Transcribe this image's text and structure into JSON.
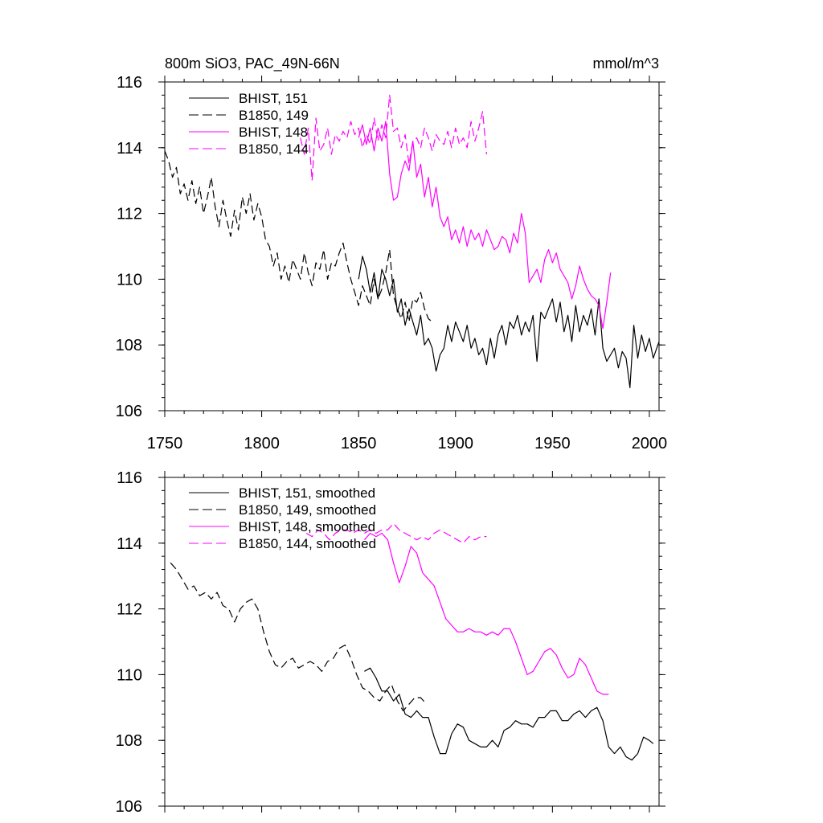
{
  "title_left": "800m SiO3, PAC_49N-66N",
  "title_right": "mmol/m^3",
  "colors": {
    "black": "#000000",
    "magenta": "#ff00ff"
  },
  "chart_data": [
    {
      "type": "line",
      "xlim": [
        1750,
        2005
      ],
      "ylim": [
        106,
        116
      ],
      "x_ticks": [
        1750,
        1800,
        1850,
        1900,
        1950,
        2000
      ],
      "y_ticks": [
        106,
        108,
        110,
        112,
        114,
        116
      ],
      "show_x_labels": true,
      "grid": false,
      "legend_position": "top-left",
      "series": [
        {
          "name": "BHIST, 151",
          "color": "#000000",
          "dash": "solid",
          "x": [
            1850,
            1852,
            1854,
            1856,
            1858,
            1860,
            1862,
            1864,
            1866,
            1868,
            1870,
            1872,
            1874,
            1876,
            1878,
            1880,
            1882,
            1884,
            1886,
            1888,
            1890,
            1892,
            1894,
            1896,
            1898,
            1900,
            1902,
            1904,
            1906,
            1908,
            1910,
            1912,
            1914,
            1916,
            1918,
            1920,
            1922,
            1924,
            1926,
            1928,
            1930,
            1932,
            1934,
            1936,
            1938,
            1940,
            1942,
            1944,
            1946,
            1948,
            1950,
            1952,
            1954,
            1956,
            1958,
            1960,
            1962,
            1964,
            1966,
            1968,
            1970,
            1972,
            1974,
            1976,
            1978,
            1980,
            1982,
            1984,
            1986,
            1988,
            1990,
            1992,
            1994,
            1996,
            1998,
            2000,
            2002,
            2005
          ],
          "y": [
            110.0,
            110.7,
            110.3,
            109.6,
            110.2,
            109.4,
            110.3,
            110.0,
            109.5,
            110.0,
            109.0,
            109.4,
            108.6,
            109.1,
            108.7,
            108.3,
            108.9,
            108.0,
            108.2,
            107.9,
            107.2,
            107.7,
            107.9,
            108.6,
            108.1,
            108.7,
            108.4,
            108.1,
            108.6,
            107.9,
            108.2,
            107.7,
            107.9,
            107.4,
            108.2,
            107.6,
            108.3,
            108.6,
            108.0,
            108.7,
            108.5,
            108.9,
            108.3,
            108.7,
            108.4,
            108.9,
            107.5,
            109.0,
            108.8,
            109.1,
            109.4,
            108.7,
            109.3,
            108.4,
            108.9,
            108.1,
            109.2,
            108.4,
            108.9,
            108.6,
            109.1,
            108.3,
            109.4,
            107.9,
            107.5,
            107.7,
            107.9,
            107.3,
            107.8,
            107.6,
            106.7,
            108.6,
            107.6,
            108.3,
            107.8,
            108.2,
            107.6,
            108.1
          ]
        },
        {
          "name": "B1850, 149",
          "color": "#000000",
          "dash": "dash",
          "x": [
            1750,
            1752,
            1754,
            1756,
            1758,
            1760,
            1762,
            1764,
            1766,
            1768,
            1770,
            1772,
            1774,
            1776,
            1778,
            1780,
            1782,
            1784,
            1786,
            1788,
            1790,
            1792,
            1794,
            1796,
            1798,
            1800,
            1802,
            1804,
            1806,
            1808,
            1810,
            1812,
            1814,
            1816,
            1818,
            1820,
            1822,
            1824,
            1826,
            1828,
            1830,
            1832,
            1834,
            1836,
            1838,
            1840,
            1842,
            1844,
            1846,
            1848,
            1850,
            1852,
            1854,
            1856,
            1858,
            1860,
            1862,
            1864,
            1866,
            1868,
            1870,
            1872,
            1874,
            1876,
            1878,
            1880,
            1882,
            1884,
            1886,
            1888
          ],
          "y": [
            113.9,
            113.6,
            113.1,
            113.4,
            112.6,
            112.9,
            112.4,
            113.0,
            112.3,
            112.8,
            112.0,
            112.5,
            113.1,
            112.2,
            111.6,
            112.4,
            111.8,
            111.3,
            112.1,
            111.5,
            112.5,
            112.0,
            112.6,
            111.8,
            112.3,
            111.9,
            111.2,
            111.0,
            110.4,
            110.8,
            110.0,
            110.4,
            109.9,
            110.6,
            110.3,
            110.0,
            110.8,
            110.2,
            109.8,
            110.5,
            110.3,
            110.9,
            110.0,
            110.5,
            110.4,
            110.8,
            111.1,
            110.5,
            110.0,
            109.6,
            109.2,
            109.8,
            109.5,
            109.2,
            110.0,
            109.4,
            109.7,
            110.2,
            110.9,
            109.5,
            109.1,
            108.8,
            109.3,
            108.7,
            109.4,
            109.3,
            109.6,
            109.1,
            108.8,
            108.7
          ]
        },
        {
          "name": "BHIST, 148",
          "color": "#ff00ff",
          "dash": "solid",
          "x": [
            1850,
            1852,
            1854,
            1856,
            1858,
            1860,
            1862,
            1864,
            1866,
            1868,
            1870,
            1872,
            1874,
            1876,
            1878,
            1880,
            1882,
            1884,
            1886,
            1888,
            1890,
            1892,
            1894,
            1896,
            1898,
            1900,
            1902,
            1904,
            1906,
            1908,
            1910,
            1912,
            1914,
            1916,
            1918,
            1920,
            1922,
            1924,
            1926,
            1928,
            1930,
            1932,
            1934,
            1936,
            1938,
            1940,
            1942,
            1944,
            1946,
            1948,
            1950,
            1952,
            1954,
            1956,
            1958,
            1960,
            1962,
            1964,
            1966,
            1968,
            1970,
            1972,
            1974,
            1976,
            1978,
            1980
          ],
          "y": [
            114.3,
            114.7,
            114.1,
            114.6,
            113.9,
            114.6,
            114.2,
            114.8,
            113.2,
            112.4,
            112.5,
            113.2,
            113.6,
            113.3,
            114.2,
            113.1,
            113.5,
            112.5,
            113.1,
            112.2,
            112.8,
            111.9,
            111.6,
            111.9,
            111.2,
            111.5,
            111.1,
            111.6,
            111.0,
            111.5,
            111.2,
            111.4,
            111.0,
            111.5,
            111.2,
            110.9,
            111.0,
            111.3,
            111.2,
            110.8,
            111.4,
            111.1,
            112.0,
            111.4,
            109.9,
            110.1,
            110.3,
            109.9,
            110.6,
            110.9,
            110.5,
            110.8,
            110.3,
            110.1,
            109.9,
            109.4,
            109.8,
            110.4,
            110.0,
            109.7,
            109.5,
            109.4,
            109.2,
            108.5,
            109.3,
            110.2
          ]
        },
        {
          "name": "B1850, 144",
          "color": "#ff00ff",
          "dash": "dash",
          "x": [
            1820,
            1822,
            1824,
            1826,
            1828,
            1830,
            1832,
            1834,
            1836,
            1838,
            1840,
            1842,
            1844,
            1846,
            1848,
            1850,
            1852,
            1854,
            1856,
            1858,
            1860,
            1862,
            1864,
            1866,
            1868,
            1870,
            1872,
            1874,
            1876,
            1878,
            1880,
            1882,
            1884,
            1886,
            1888,
            1890,
            1892,
            1894,
            1896,
            1898,
            1900,
            1902,
            1904,
            1906,
            1908,
            1910,
            1912,
            1914,
            1916
          ],
          "y": [
            114.3,
            113.8,
            114.6,
            113.0,
            114.9,
            113.9,
            114.1,
            114.6,
            113.8,
            114.4,
            114.2,
            114.5,
            114.3,
            114.8,
            114.4,
            114.6,
            114.0,
            114.4,
            114.1,
            114.9,
            114.2,
            114.7,
            114.3,
            115.6,
            114.5,
            114.6,
            114.0,
            114.4,
            113.5,
            114.2,
            114.3,
            114.0,
            114.6,
            114.3,
            113.9,
            114.4,
            114.2,
            114.1,
            114.5,
            114.0,
            114.6,
            114.1,
            114.3,
            114.0,
            114.8,
            114.2,
            114.6,
            115.1,
            113.8
          ]
        }
      ]
    },
    {
      "type": "line",
      "xlim": [
        1750,
        2005
      ],
      "ylim": [
        106,
        116
      ],
      "x_ticks": [
        1750,
        1800,
        1850,
        1900,
        1950,
        2000
      ],
      "y_ticks": [
        106,
        108,
        110,
        112,
        114,
        116
      ],
      "show_x_labels": false,
      "grid": false,
      "legend_position": "top-left",
      "series": [
        {
          "name": "BHIST, 151, smoothed",
          "color": "#000000",
          "dash": "solid",
          "x": [
            1853,
            1856,
            1859,
            1862,
            1865,
            1868,
            1871,
            1874,
            1877,
            1880,
            1883,
            1886,
            1889,
            1892,
            1895,
            1898,
            1901,
            1904,
            1907,
            1910,
            1913,
            1916,
            1919,
            1922,
            1925,
            1928,
            1931,
            1934,
            1937,
            1940,
            1943,
            1946,
            1949,
            1952,
            1955,
            1958,
            1961,
            1964,
            1967,
            1970,
            1973,
            1976,
            1979,
            1982,
            1985,
            1988,
            1991,
            1994,
            1997,
            2000,
            2002
          ],
          "y": [
            110.1,
            110.2,
            109.9,
            109.5,
            109.5,
            109.2,
            109.4,
            108.8,
            108.7,
            108.9,
            108.7,
            108.7,
            108.1,
            107.6,
            107.6,
            108.2,
            108.5,
            108.4,
            108.0,
            107.9,
            107.8,
            107.8,
            108.0,
            107.8,
            108.3,
            108.4,
            108.6,
            108.5,
            108.5,
            108.4,
            108.7,
            108.7,
            108.9,
            108.9,
            108.6,
            108.6,
            108.8,
            108.9,
            108.7,
            108.9,
            109.0,
            108.6,
            107.8,
            107.6,
            107.8,
            107.5,
            107.4,
            107.6,
            108.1,
            108.0,
            107.9
          ]
        },
        {
          "name": "B1850, 149, smoothed",
          "color": "#000000",
          "dash": "dash",
          "x": [
            1753,
            1756,
            1759,
            1762,
            1765,
            1768,
            1771,
            1774,
            1777,
            1780,
            1783,
            1786,
            1789,
            1792,
            1795,
            1798,
            1801,
            1804,
            1807,
            1810,
            1813,
            1816,
            1819,
            1822,
            1825,
            1828,
            1831,
            1834,
            1837,
            1840,
            1843,
            1846,
            1849,
            1852,
            1855,
            1858,
            1861,
            1864,
            1867,
            1870,
            1873,
            1876,
            1879,
            1882,
            1885
          ],
          "y": [
            113.4,
            113.2,
            112.9,
            112.6,
            112.7,
            112.4,
            112.5,
            112.3,
            112.5,
            112.1,
            112.0,
            111.6,
            112.0,
            112.2,
            112.3,
            112.0,
            111.3,
            110.7,
            110.3,
            110.2,
            110.4,
            110.5,
            110.2,
            110.3,
            110.4,
            110.3,
            110.1,
            110.4,
            110.5,
            110.8,
            110.9,
            110.5,
            110.0,
            109.6,
            109.5,
            109.3,
            109.2,
            109.5,
            109.7,
            109.2,
            108.9,
            109.1,
            109.3,
            109.3,
            109.1
          ]
        },
        {
          "name": "BHIST, 148, smoothed",
          "color": "#ff00ff",
          "dash": "solid",
          "x": [
            1853,
            1856,
            1859,
            1862,
            1865,
            1868,
            1871,
            1874,
            1877,
            1880,
            1883,
            1886,
            1889,
            1892,
            1895,
            1898,
            1901,
            1904,
            1907,
            1910,
            1913,
            1916,
            1919,
            1922,
            1925,
            1928,
            1931,
            1934,
            1937,
            1940,
            1943,
            1946,
            1949,
            1952,
            1955,
            1958,
            1961,
            1964,
            1967,
            1970,
            1973,
            1976,
            1979
          ],
          "y": [
            114.1,
            114.3,
            114.2,
            114.3,
            114.1,
            113.4,
            112.8,
            113.3,
            113.9,
            113.7,
            113.1,
            112.9,
            112.7,
            112.2,
            111.7,
            111.5,
            111.3,
            111.3,
            111.4,
            111.3,
            111.3,
            111.2,
            111.3,
            111.2,
            111.4,
            111.4,
            111.0,
            110.5,
            110.0,
            110.1,
            110.4,
            110.7,
            110.8,
            110.6,
            110.2,
            109.9,
            110.0,
            110.5,
            110.3,
            109.9,
            109.5,
            109.4,
            109.4
          ]
        },
        {
          "name": "B1850, 144, smoothed",
          "color": "#ff00ff",
          "dash": "dash",
          "x": [
            1823,
            1826,
            1829,
            1832,
            1835,
            1838,
            1841,
            1844,
            1847,
            1850,
            1853,
            1856,
            1859,
            1862,
            1865,
            1868,
            1871,
            1874,
            1877,
            1880,
            1883,
            1886,
            1889,
            1892,
            1895,
            1898,
            1901,
            1904,
            1907,
            1910,
            1913,
            1916
          ],
          "y": [
            114.3,
            114.2,
            114.4,
            114.3,
            114.1,
            114.3,
            114.4,
            114.4,
            114.3,
            114.4,
            114.3,
            114.4,
            114.3,
            114.4,
            114.4,
            114.6,
            114.4,
            114.3,
            114.2,
            114.1,
            114.2,
            114.1,
            114.3,
            114.4,
            114.3,
            114.2,
            114.1,
            114.0,
            114.2,
            114.1,
            114.2,
            114.2
          ]
        }
      ]
    }
  ]
}
